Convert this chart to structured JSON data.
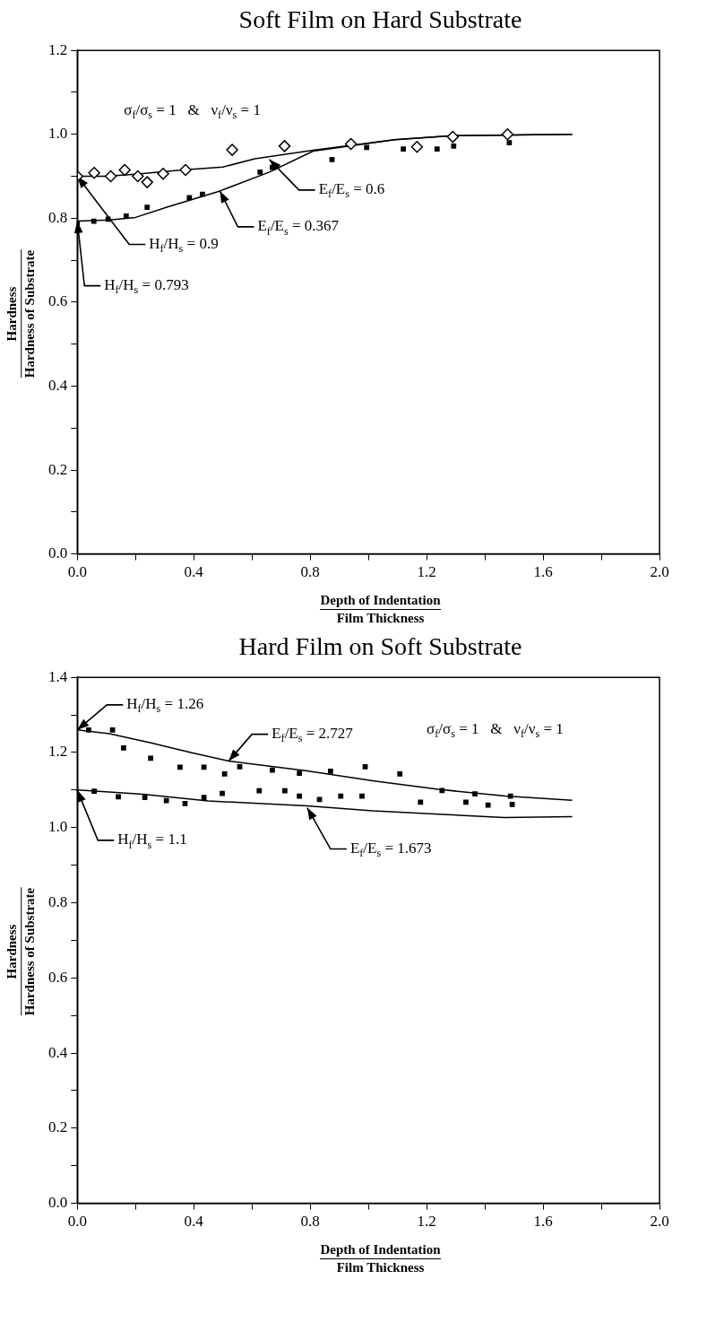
{
  "chart_data": [
    {
      "type": "line",
      "title": "Soft Film on Hard Substrate",
      "xlabel": "Depth of Indentation\nFilm Thickness",
      "ylabel": "Hardness\nHardness of Substrate",
      "xlim": [
        0,
        2
      ],
      "ylim": [
        0,
        1.2
      ],
      "grid": false,
      "xticks": [
        {
          "value": 0,
          "label": "0.0"
        },
        {
          "value": 0.2,
          "label": null
        },
        {
          "value": 0.4,
          "label": "0.4"
        },
        {
          "value": 0.6,
          "label": null
        },
        {
          "value": 0.8,
          "label": "0.8"
        },
        {
          "value": 1,
          "label": null
        },
        {
          "value": 1.2,
          "label": "1.2"
        },
        {
          "value": 1.4,
          "label": null
        },
        {
          "value": 1.6,
          "label": "1.6"
        },
        {
          "value": 1.8,
          "label": null
        },
        {
          "value": 2,
          "label": "2.0"
        }
      ],
      "yticks": [
        {
          "value": 0,
          "label": "0.0"
        },
        {
          "value": 0.1,
          "label": null
        },
        {
          "value": 0.2,
          "label": "0.2"
        },
        {
          "value": 0.3,
          "label": null
        },
        {
          "value": 0.4,
          "label": "0.4"
        },
        {
          "value": 0.5,
          "label": null
        },
        {
          "value": 0.6,
          "label": "0.6"
        },
        {
          "value": 0.7,
          "label": null
        },
        {
          "value": 0.8,
          "label": "0.8"
        },
        {
          "value": 0.9,
          "label": null
        },
        {
          "value": 1,
          "label": "1.0"
        },
        {
          "value": 1.1,
          "label": null
        },
        {
          "value": 1.2,
          "label": "1.2"
        }
      ],
      "annotations": [
        "σ$_{f}$/σ$_{s}$ = 1   &   ν$_{f}$/ν$_{s}$ = 1",
        {
          "text": "H$_{f}$/H$_{s}$ = 0.9",
          "x": 0,
          "y": 0.9
        },
        {
          "text": "H$_{f}$/H$_{s}$ = 0.793",
          "x": 0,
          "y": 0.793
        },
        {
          "text": "E$_{f}$/E$_{s}$ = 0.367",
          "x": 0.49,
          "y": 0.865
        },
        {
          "text": "E$_{f}$/E$_{s}$ = 0.6",
          "x": 0.66,
          "y": 0.94
        }
      ],
      "series": [
        {
          "type": "scatter",
          "marker": "diamond",
          "color": "#000000",
          "x": [
            0,
            0.058,
            0.115,
            0.163,
            0.208,
            0.24,
            0.295,
            0.372,
            0.532,
            0.712,
            0.94,
            1.167,
            1.29,
            1.478
          ],
          "values": [
            0.9,
            0.908,
            0.9,
            0.915,
            0.9,
            0.886,
            0.906,
            0.915,
            0.963,
            0.972,
            0.977,
            0.97,
            0.994,
            1.0
          ]
        },
        {
          "type": "scatter",
          "marker": "square",
          "color": "#000000",
          "x": [
            0,
            0.057,
            0.106,
            0.168,
            0.24,
            0.385,
            0.43,
            0.628,
            0.67,
            0.875,
            0.994,
            1.12,
            1.236,
            1.293,
            1.484
          ],
          "values": [
            0.788,
            0.793,
            0.798,
            0.805,
            0.826,
            0.849,
            0.857,
            0.91,
            0.921,
            0.94,
            0.969,
            0.965,
            0.965,
            0.972,
            0.98
          ]
        },
        {
          "type": "line",
          "marker": "none",
          "color": "#000000",
          "x": [
            0,
            0.1,
            0.2,
            0.36,
            0.5,
            0.61,
            0.81,
            1.09,
            1.29,
            1.7
          ],
          "values": [
            0.9,
            0.9,
            0.905,
            0.915,
            0.922,
            0.942,
            0.962,
            0.987,
            0.997,
            1.0
          ]
        },
        {
          "type": "line",
          "marker": "none",
          "color": "#000000",
          "x": [
            0,
            0.11,
            0.2,
            0.31,
            0.49,
            0.66,
            0.81,
            1.09,
            1.29,
            1.7
          ],
          "values": [
            0.793,
            0.796,
            0.802,
            0.827,
            0.865,
            0.91,
            0.96,
            0.987,
            0.997,
            1.0
          ]
        }
      ]
    },
    {
      "type": "line",
      "title": "Hard Film on Soft Substrate",
      "xlabel": "Depth of Indentation\nFilm Thickness",
      "ylabel": "Hardness\nHardness of Substrate",
      "xlim": [
        0,
        2
      ],
      "ylim": [
        0,
        1.4
      ],
      "grid": false,
      "xticks": [
        {
          "value": 0,
          "label": "0.0"
        },
        {
          "value": 0.2,
          "label": null
        },
        {
          "value": 0.4,
          "label": "0.4"
        },
        {
          "value": 0.6,
          "label": null
        },
        {
          "value": 0.8,
          "label": "0.8"
        },
        {
          "value": 1,
          "label": null
        },
        {
          "value": 1.2,
          "label": "1.2"
        },
        {
          "value": 1.4,
          "label": null
        },
        {
          "value": 1.6,
          "label": "1.6"
        },
        {
          "value": 1.8,
          "label": null
        },
        {
          "value": 2,
          "label": "2.0"
        }
      ],
      "yticks": [
        {
          "value": 0,
          "label": "0.0"
        },
        {
          "value": 0.1,
          "label": null
        },
        {
          "value": 0.2,
          "label": "0.2"
        },
        {
          "value": 0.3,
          "label": null
        },
        {
          "value": 0.4,
          "label": "0.4"
        },
        {
          "value": 0.5,
          "label": null
        },
        {
          "value": 0.6,
          "label": "0.6"
        },
        {
          "value": 0.7,
          "label": null
        },
        {
          "value": 0.8,
          "label": "0.8"
        },
        {
          "value": 0.9,
          "label": null
        },
        {
          "value": 1,
          "label": "1.0"
        },
        {
          "value": 1.1,
          "label": null
        },
        {
          "value": 1.2,
          "label": "1.2"
        },
        {
          "value": 1.3,
          "label": null
        },
        {
          "value": 1.4,
          "label": "1.4"
        }
      ],
      "annotations": [
        "σ$_{f}$/σ$_{s}$ = 1   &   ν$_{f}$/ν$_{s}$ = 1",
        {
          "text": "H$_{f}$/H$_{s}$ = 1.26",
          "x": 0,
          "y": 1.26
        },
        {
          "text": "H$_{f}$/H$_{s}$ = 1.1",
          "x": 0,
          "y": 1.1
        },
        {
          "text": "E$_{f}$/E$_{s}$ = 2.727",
          "x": 0.52,
          "y": 1.177
        },
        {
          "text": "E$_{f}$/E$_{s}$ = 1.673",
          "x": 0.79,
          "y": 1.053
        }
      ],
      "series": [
        {
          "type": "scatter",
          "marker": "square",
          "color": "#000000",
          "x": [
            0.039,
            0.121,
            0.159,
            0.252,
            0.353,
            0.435,
            0.506,
            0.558,
            0.67,
            0.763,
            0.87,
            0.989,
            1.108,
            1.253,
            1.366,
            1.488
          ],
          "values": [
            1.26,
            1.26,
            1.212,
            1.185,
            1.161,
            1.161,
            1.143,
            1.162,
            1.153,
            1.145,
            1.15,
            1.162,
            1.143,
            1.099,
            1.09,
            1.084
          ]
        },
        {
          "type": "scatter",
          "marker": "square",
          "color": "#000000",
          "x": [
            0.058,
            0.141,
            0.232,
            0.306,
            0.37,
            0.435,
            0.498,
            0.625,
            0.713,
            0.763,
            0.832,
            0.905,
            0.978,
            1.179,
            1.335,
            1.411,
            1.494
          ],
          "values": [
            1.097,
            1.082,
            1.08,
            1.072,
            1.064,
            1.08,
            1.091,
            1.098,
            1.098,
            1.084,
            1.075,
            1.084,
            1.084,
            1.068,
            1.068,
            1.06,
            1.062
          ]
        },
        {
          "type": "line",
          "marker": "none",
          "color": "#000000",
          "x": [
            0,
            0.11,
            0.25,
            0.39,
            0.52,
            0.79,
            1.02,
            1.24,
            1.47,
            1.7
          ],
          "values": [
            1.26,
            1.25,
            1.226,
            1.2,
            1.177,
            1.151,
            1.124,
            1.102,
            1.084,
            1.073
          ]
        },
        {
          "type": "line",
          "marker": "none",
          "color": "#000000",
          "x": [
            0,
            0.05,
            0.225,
            0.45,
            0.79,
            1.015,
            1.24,
            1.467,
            1.7
          ],
          "values": [
            1.1,
            1.098,
            1.089,
            1.071,
            1.058,
            1.045,
            1.036,
            1.027,
            1.029
          ]
        }
      ]
    }
  ]
}
